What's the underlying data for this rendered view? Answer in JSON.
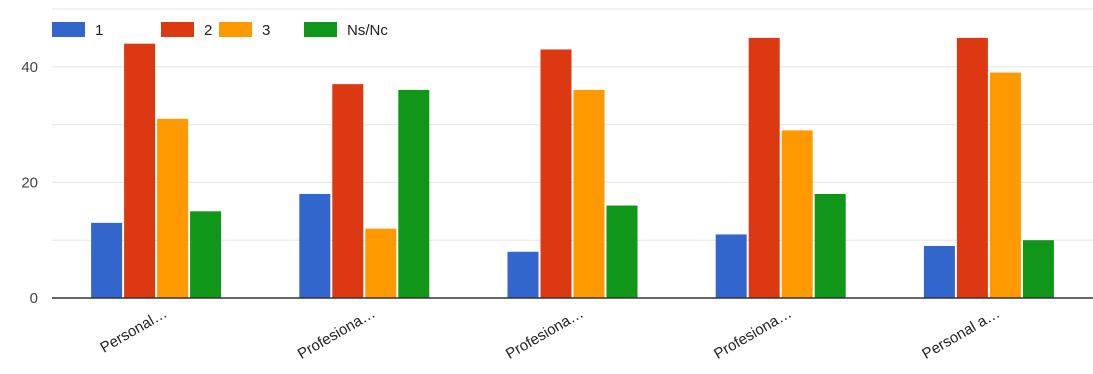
{
  "chart_data": {
    "type": "bar",
    "categories": [
      "Personal…",
      "Profesiona…",
      "Profesiona…",
      "Profesiona…",
      "Personal a…"
    ],
    "series": [
      {
        "name": "1",
        "color": "#3366cc",
        "values": [
          13,
          18,
          8,
          11,
          9
        ]
      },
      {
        "name": "2",
        "color": "#dc3912",
        "values": [
          44,
          37,
          43,
          45,
          45
        ]
      },
      {
        "name": "3",
        "color": "#ff9900",
        "values": [
          31,
          12,
          36,
          29,
          39
        ]
      },
      {
        "name": "Ns/Nc",
        "color": "#109618",
        "values": [
          15,
          36,
          16,
          18,
          10
        ]
      }
    ],
    "ylim": [
      0,
      50
    ],
    "yticks": [
      0,
      20,
      40
    ],
    "grid": true,
    "legend_position": "top-left",
    "title": "",
    "xlabel": "",
    "ylabel": ""
  }
}
